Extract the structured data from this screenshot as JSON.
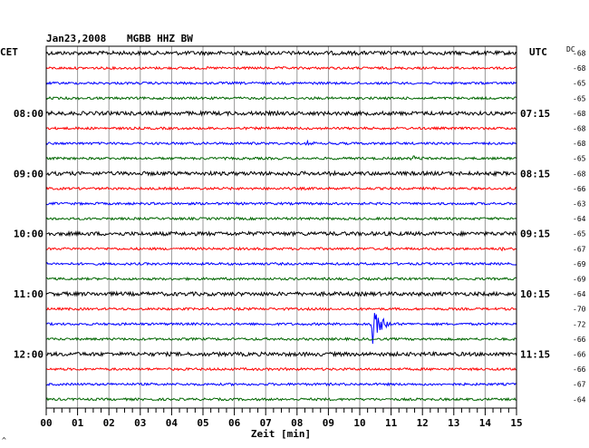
{
  "header": {
    "date": "Jan23,2008",
    "station": "MGBB HHZ BW",
    "left_tz": "CET",
    "right_tz": "UTC",
    "dc_label": "DC"
  },
  "axis": {
    "xlabel": "Zeit [min]",
    "corner_mark": "^"
  },
  "colors": {
    "cycle": [
      "#000000",
      "#ff0000",
      "#0000ff",
      "#006600"
    ],
    "grid": "#999999",
    "frame": "#000000"
  },
  "chart_data": {
    "type": "line",
    "title": "Jan23,2008 MGBB HHZ BW",
    "xlabel": "Zeit [min]",
    "xlim": [
      0,
      15
    ],
    "x_ticks": [
      "00",
      "01",
      "02",
      "03",
      "04",
      "05",
      "06",
      "07",
      "08",
      "09",
      "10",
      "11",
      "12",
      "13",
      "14",
      "15"
    ],
    "trace_count": 24,
    "trace_minutes": 15,
    "grid": true,
    "hour_labels_left": [
      {
        "trace": 4,
        "label": "08:00"
      },
      {
        "trace": 8,
        "label": "09:00"
      },
      {
        "trace": 12,
        "label": "10:00"
      },
      {
        "trace": 16,
        "label": "11:00"
      },
      {
        "trace": 20,
        "label": "12:00"
      }
    ],
    "hour_labels_right": [
      {
        "trace": 4,
        "label": "07:15"
      },
      {
        "trace": 8,
        "label": "08:15"
      },
      {
        "trace": 12,
        "label": "09:15"
      },
      {
        "trace": 16,
        "label": "10:15"
      },
      {
        "trace": 20,
        "label": "11:15"
      }
    ],
    "dc_offsets": [
      "-68",
      "-68",
      "-65",
      "-65",
      "-68",
      "-68",
      "-68",
      "-65",
      "-68",
      "-66",
      "-63",
      "-64",
      "-65",
      "-67",
      "-69",
      "-69",
      "-64",
      "-70",
      "-72",
      "-66",
      "-66",
      "-66",
      "-67",
      "-64"
    ],
    "events": [
      {
        "trace": 13,
        "minute": 14.55,
        "amplitude": 0.55
      },
      {
        "trace": 18,
        "minute": 10.45,
        "amplitude": 3.2
      },
      {
        "trace": 6,
        "minute": 8.3,
        "amplitude": 0.35
      },
      {
        "trace": 7,
        "minute": 11.7,
        "amplitude": 0.35
      }
    ]
  }
}
